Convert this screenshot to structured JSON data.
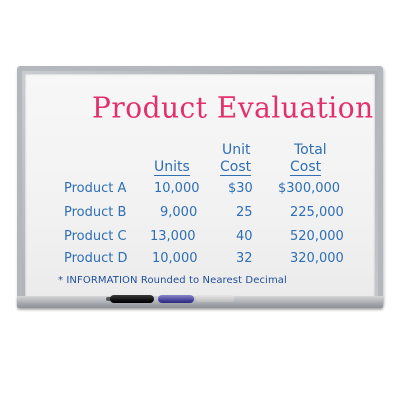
{
  "title": "Product Evaluation",
  "headers": {
    "units": "Units",
    "unit_cost_line1": "Unit",
    "unit_cost_line2": "Cost",
    "total_cost_line1": "Total",
    "total_cost_line2": "Cost"
  },
  "rows": [
    {
      "product": "Product A",
      "units": "10,000",
      "unit_cost": "$30",
      "total_cost": "$300,000"
    },
    {
      "product": "Product B",
      "units": "9,000",
      "unit_cost": "25",
      "total_cost": "225,000"
    },
    {
      "product": "Product C",
      "units": "13,000",
      "unit_cost": "40",
      "total_cost": "520,000"
    },
    {
      "product": "Product D",
      "units": "10,000",
      "unit_cost": "32",
      "total_cost": "320,000"
    }
  ],
  "footnote": "* INFORMATION Rounded to Nearest Decimal",
  "colors": {
    "title": "#e3306b",
    "table_text": "#2f6fb5",
    "footnote": "#1f4e9a"
  }
}
